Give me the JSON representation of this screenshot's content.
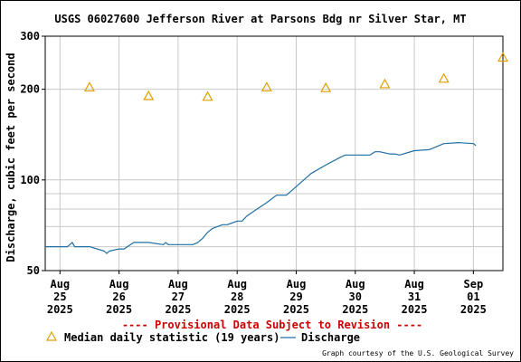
{
  "chart_data": {
    "type": "line",
    "title": "USGS 06027600 Jefferson River at Parsons Bdg nr Silver Star, MT",
    "ylabel": "Discharge, cubic feet per second",
    "xlabel": "",
    "y_scale": "log",
    "ylim": [
      50,
      300
    ],
    "y_ticks": [
      50,
      100,
      200,
      300
    ],
    "y_tick_labels": [
      "50",
      "100",
      "200",
      "300"
    ],
    "xlim": [
      "2025-08-24T18:00",
      "2025-09-01T12:00"
    ],
    "x_ticks": [
      {
        "date": "2025-08-25",
        "label": [
          "Aug",
          "25",
          "2025"
        ]
      },
      {
        "date": "2025-08-26",
        "label": [
          "Aug",
          "26",
          "2025"
        ]
      },
      {
        "date": "2025-08-27",
        "label": [
          "Aug",
          "27",
          "2025"
        ]
      },
      {
        "date": "2025-08-28",
        "label": [
          "Aug",
          "28",
          "2025"
        ]
      },
      {
        "date": "2025-08-29",
        "label": [
          "Aug",
          "29",
          "2025"
        ]
      },
      {
        "date": "2025-08-30",
        "label": [
          "Aug",
          "30",
          "2025"
        ]
      },
      {
        "date": "2025-08-31",
        "label": [
          "Aug",
          "31",
          "2025"
        ]
      },
      {
        "date": "2025-09-01",
        "label": [
          "Sep",
          "01",
          "2025"
        ]
      }
    ],
    "grid": true,
    "legend_position": "bottom",
    "colors": {
      "discharge": "#1f6fa3",
      "median": "#e0a000",
      "provisional": "#cc0000"
    },
    "series": [
      {
        "name": "Discharge",
        "style": "line",
        "x": [
          "2025-08-24T18:00",
          "2025-08-25T00:00",
          "2025-08-25T03:00",
          "2025-08-25T04:00",
          "2025-08-25T05:00",
          "2025-08-25T06:00",
          "2025-08-25T12:00",
          "2025-08-25T18:00",
          "2025-08-25T19:00",
          "2025-08-25T20:00",
          "2025-08-26T00:00",
          "2025-08-26T02:00",
          "2025-08-26T06:00",
          "2025-08-26T12:00",
          "2025-08-26T18:00",
          "2025-08-26T19:00",
          "2025-08-26T20:00",
          "2025-08-27T00:00",
          "2025-08-27T06:00",
          "2025-08-27T08:00",
          "2025-08-27T10:00",
          "2025-08-27T12:00",
          "2025-08-27T14:00",
          "2025-08-27T18:00",
          "2025-08-27T20:00",
          "2025-08-28T00:00",
          "2025-08-28T02:00",
          "2025-08-28T04:00",
          "2025-08-28T08:00",
          "2025-08-28T12:00",
          "2025-08-28T16:00",
          "2025-08-28T20:00",
          "2025-08-29T00:00",
          "2025-08-29T06:00",
          "2025-08-29T12:00",
          "2025-08-29T18:00",
          "2025-08-29T20:00",
          "2025-08-30T00:00",
          "2025-08-30T06:00",
          "2025-08-30T08:00",
          "2025-08-30T10:00",
          "2025-08-30T12:00",
          "2025-08-30T14:00",
          "2025-08-30T16:00",
          "2025-08-30T18:00",
          "2025-08-31T00:00",
          "2025-08-31T06:00",
          "2025-08-31T12:00",
          "2025-08-31T18:00",
          "2025-09-01T00:00",
          "2025-09-01T01:00"
        ],
        "values": [
          60,
          60,
          60,
          61,
          62,
          60,
          60,
          58,
          57,
          58,
          59,
          59,
          62,
          62,
          61,
          62,
          61,
          61,
          61,
          62,
          64,
          67,
          69,
          71,
          71,
          73,
          73,
          76,
          80,
          84,
          89,
          89,
          95,
          105,
          112,
          119,
          121,
          121,
          121,
          124,
          124,
          123,
          122,
          122,
          121,
          125,
          126,
          132,
          133,
          132,
          130
        ]
      },
      {
        "name": "Median daily statistic (19 years)",
        "style": "marker-triangle",
        "x": [
          "2025-08-25T12:00",
          "2025-08-26T12:00",
          "2025-08-27T12:00",
          "2025-08-28T12:00",
          "2025-08-29T12:00",
          "2025-08-30T12:00",
          "2025-08-31T12:00",
          "2025-09-01T12:00"
        ],
        "values": [
          203,
          190,
          189,
          203,
          202,
          208,
          217,
          255
        ]
      }
    ],
    "provisional_note": "---- Provisional Data Subject to Revision ----",
    "credit": "Graph courtesy of the U.S. Geological Survey"
  }
}
